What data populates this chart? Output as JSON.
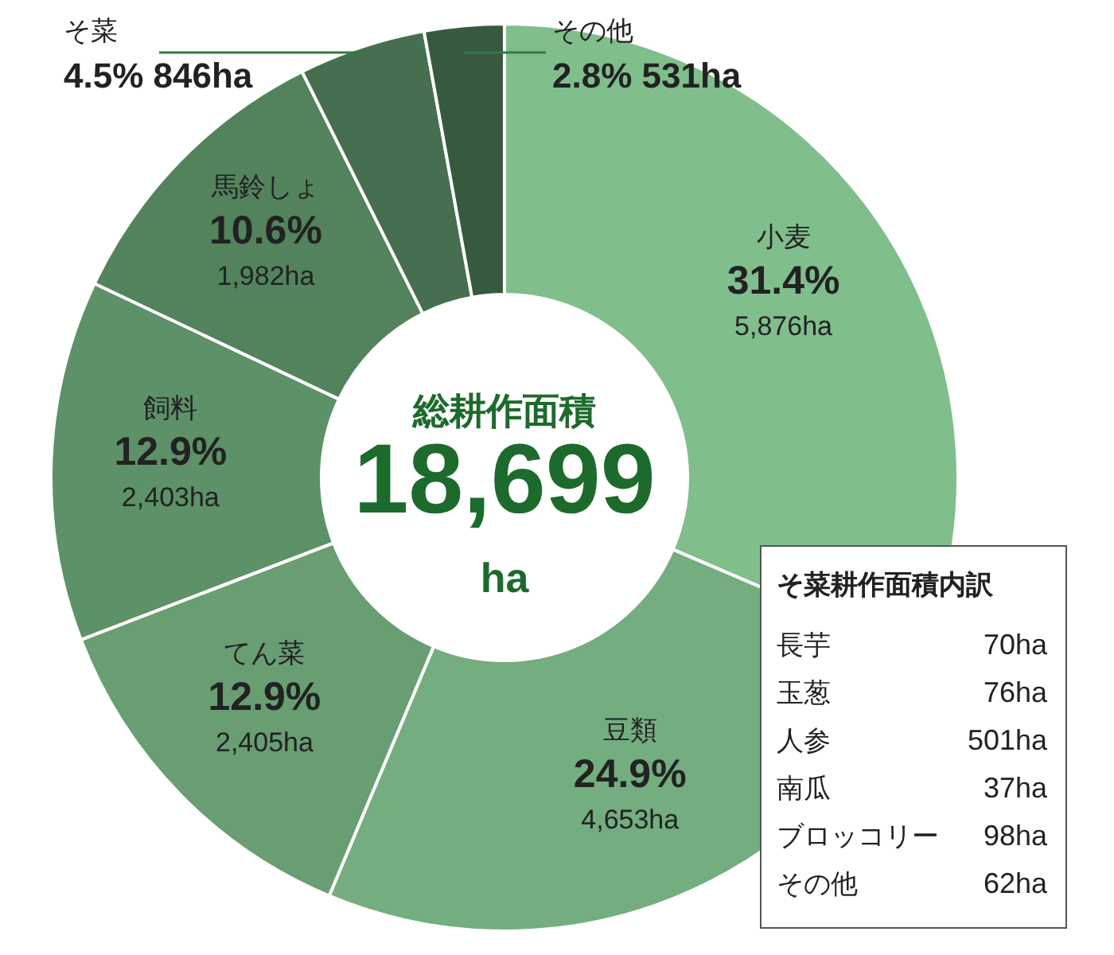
{
  "chart_data": {
    "type": "donut",
    "categories": [
      "小麦",
      "豆類",
      "てん菜",
      "飼料",
      "馬鈴しょ",
      "そ菜",
      "その他"
    ],
    "values": [
      5876,
      4653,
      2405,
      2403,
      1982,
      846,
      531
    ],
    "colors": [
      "#80be8c",
      "#74ad7f",
      "#689e72",
      "#5d9167",
      "#52835c",
      "#466f4f",
      "#375a3f"
    ],
    "value_labels": [
      "31.4%\n5,876ha",
      "24.9%\n4,653ha",
      "12.9%\n2,405ha",
      "12.9%\n2,403ha",
      "10.6%\n1,982ha",
      "4.5%\n846ha",
      "2.8%\n531ha"
    ],
    "annotations": [
      "総耕作面積",
      "18,699",
      "ha",
      "そ菜耕作面積内訳",
      "長芋 70ha",
      "玉葱 76ha",
      "人参 501ha",
      "南瓜 37ha",
      "ブロッコリー 98ha",
      "その他 62ha"
    ]
  }
}
